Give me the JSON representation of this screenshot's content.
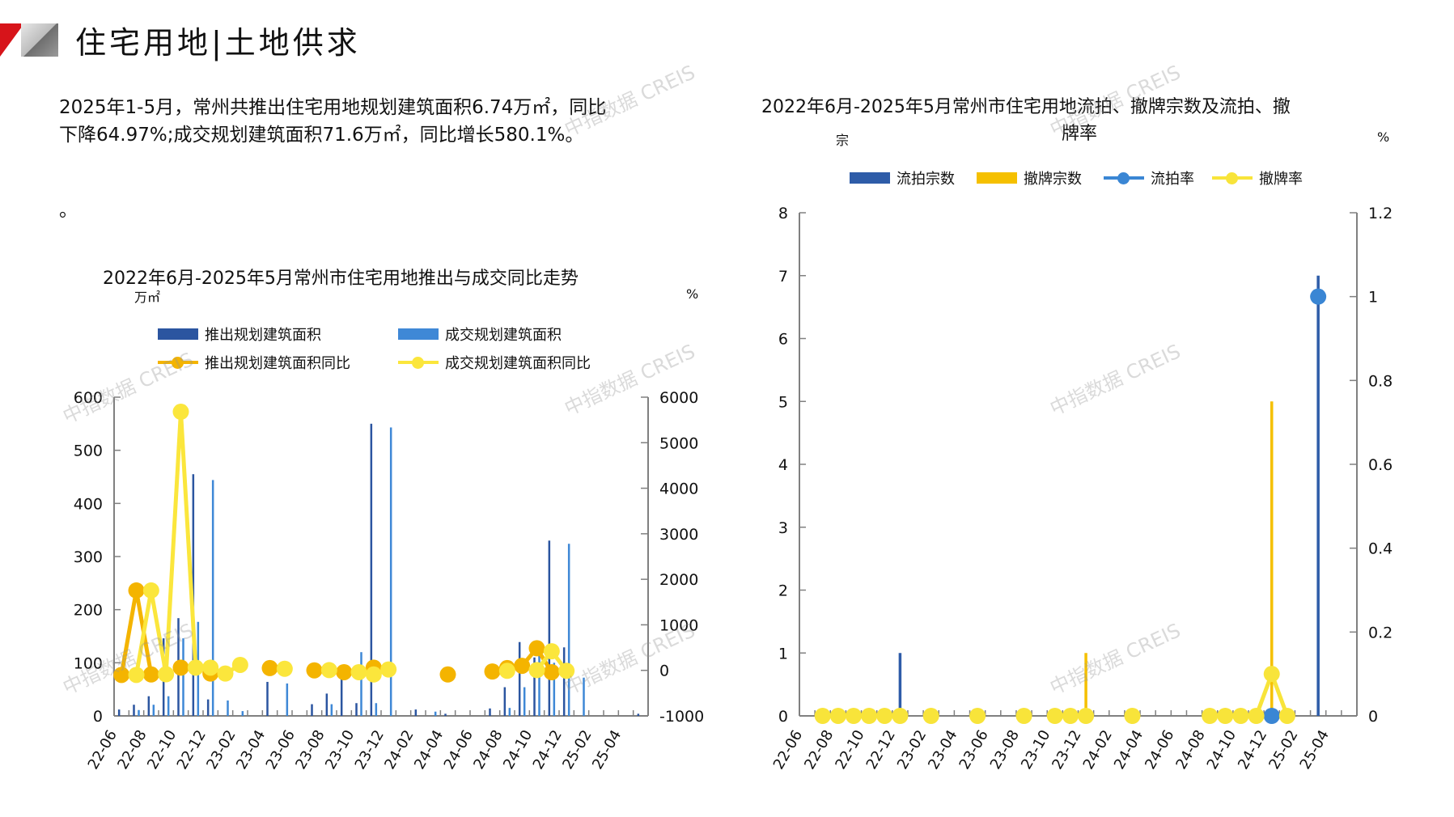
{
  "header": {
    "title": "住宅用地|土地供求"
  },
  "summary": {
    "line1": "2025年1-5月，常州共推出住宅用地规划建筑面积6.74万㎡，同比",
    "line2": "下降64.97%;成交规划建筑面积71.6万㎡，同比增长580.1%。",
    "line3": "。"
  },
  "watermark": "中指数据 CREIS",
  "colors": {
    "push_bar": "#2b55a0",
    "deal_bar": "#3f88d6",
    "push_yoy": "#f4b400",
    "deal_yoy": "#fbe63c",
    "flow_bar": "#2e5ca8",
    "withdraw_bar": "#f5c000",
    "flow_rate": "#3a86d4",
    "withdraw_rate": "#f8e43a",
    "axis": "#808080"
  },
  "chart_data": [
    {
      "type": "bar",
      "title": "2022年6月-2025年5月常州市住宅用地推出与成交同比走势",
      "ylabel": "万㎡",
      "y2label": "%",
      "ylim": [
        0,
        600
      ],
      "y2lim": [
        -1000,
        6000
      ],
      "yticks": [
        "0",
        "100",
        "200",
        "300",
        "400",
        "500",
        "600"
      ],
      "y2ticks": [
        "-1000",
        "0",
        "1000",
        "2000",
        "3000",
        "4000",
        "5000",
        "6000"
      ],
      "categories": [
        "22-06",
        "22-07",
        "22-08",
        "22-09",
        "22-10",
        "22-11",
        "22-12",
        "23-01",
        "23-02",
        "23-03",
        "23-04",
        "23-05",
        "23-06",
        "23-07",
        "23-08",
        "23-09",
        "23-10",
        "23-11",
        "23-12",
        "24-01",
        "24-02",
        "24-03",
        "24-04",
        "24-05",
        "24-06",
        "24-07",
        "24-08",
        "24-09",
        "24-10",
        "24-11",
        "24-12",
        "25-01",
        "25-02",
        "25-03",
        "25-04",
        "25-05"
      ],
      "xtick_labels": [
        "22-06",
        "22-08",
        "22-10",
        "22-12",
        "23-02",
        "23-04",
        "23-06",
        "23-08",
        "23-10",
        "23-12",
        "24-02",
        "24-04",
        "24-06",
        "24-08",
        "24-10",
        "24-12",
        "25-02",
        "25-04"
      ],
      "legend": [
        "推出规划建筑面积",
        "成交规划建筑面积",
        "推出规划建筑面积同比",
        "成交规划建筑面积同比"
      ],
      "series": [
        {
          "name": "推出规划建筑面积",
          "kind": "bar",
          "axis": "left",
          "values": [
            12,
            21,
            37,
            146,
            184,
            455,
            31,
            0,
            0,
            0,
            64,
            0,
            0,
            22,
            42,
            79,
            24,
            550,
            0,
            0,
            12,
            0,
            4,
            0,
            0,
            14,
            54,
            139,
            110,
            330,
            129,
            0,
            0,
            0,
            0,
            4
          ]
        },
        {
          "name": "成交规划建筑面积",
          "kind": "bar",
          "axis": "left",
          "values": [
            0,
            11,
            21,
            37,
            146,
            177,
            444,
            29,
            9,
            0,
            0,
            61,
            0,
            0,
            22,
            0,
            120,
            24,
            543,
            0,
            0,
            8,
            0,
            0,
            0,
            0,
            15,
            54,
            125,
            100,
            324,
            72,
            0,
            0,
            0,
            0
          ]
        },
        {
          "name": "推出规划建筑面积同比",
          "kind": "line",
          "axis": "right",
          "values": [
            -100,
            1755,
            -90,
            null,
            60,
            null,
            -70,
            null,
            null,
            null,
            50,
            null,
            null,
            0,
            null,
            -40,
            null,
            60,
            null,
            null,
            null,
            null,
            -90,
            null,
            null,
            -25,
            50,
            100,
            485,
            -40,
            null,
            null,
            null,
            null,
            null,
            null
          ]
        },
        {
          "name": "成交规划建筑面积同比",
          "kind": "line",
          "axis": "right",
          "values": [
            null,
            -100,
            1755,
            -85,
            5680,
            60,
            60,
            -70,
            120,
            null,
            null,
            35,
            null,
            null,
            5,
            null,
            -40,
            -90,
            20,
            null,
            null,
            null,
            null,
            null,
            null,
            null,
            -10,
            null,
            5,
            420,
            -10,
            null,
            null,
            null,
            null,
            null
          ]
        }
      ]
    },
    {
      "type": "bar",
      "title": "2022年6月-2025年5月常州市住宅用地流拍、撤牌宗数及流拍、撤",
      "title_line2": "牌率",
      "ylabel": "宗",
      "y2label": "%",
      "ylim": [
        0,
        8
      ],
      "y2lim": [
        0,
        1.2
      ],
      "yticks": [
        "0",
        "1",
        "2",
        "3",
        "4",
        "5",
        "6",
        "7",
        "8"
      ],
      "y2ticks": [
        "0",
        "0.2",
        "0.4",
        "0.6",
        "0.8",
        "1",
        "1.2"
      ],
      "categories": [
        "22-06",
        "22-07",
        "22-08",
        "22-09",
        "22-10",
        "22-11",
        "22-12",
        "23-01",
        "23-02",
        "23-03",
        "23-04",
        "23-05",
        "23-06",
        "23-07",
        "23-08",
        "23-09",
        "23-10",
        "23-11",
        "23-12",
        "24-01",
        "24-02",
        "24-03",
        "24-04",
        "24-05",
        "24-06",
        "24-07",
        "24-08",
        "24-09",
        "24-10",
        "24-11",
        "24-12",
        "25-01",
        "25-02",
        "25-03",
        "25-04",
        "25-05"
      ],
      "xtick_labels": [
        "22-06",
        "22-08",
        "22-10",
        "22-12",
        "23-02",
        "23-04",
        "23-06",
        "23-08",
        "23-10",
        "23-12",
        "24-02",
        "24-04",
        "24-06",
        "24-08",
        "24-10",
        "24-12",
        "25-02",
        "25-04"
      ],
      "legend": [
        "流拍宗数",
        "撤牌宗数",
        "流拍率",
        "撤牌率"
      ],
      "series": [
        {
          "name": "流拍宗数",
          "kind": "bar",
          "axis": "left",
          "values": [
            0,
            0,
            0,
            0,
            0,
            0,
            1,
            0,
            0,
            0,
            0,
            0,
            0,
            0,
            0,
            0,
            0,
            0,
            0,
            0,
            0,
            0,
            0,
            0,
            0,
            0,
            0,
            0,
            0,
            0,
            0,
            0,
            0,
            7,
            0,
            0
          ]
        },
        {
          "name": "撤牌宗数",
          "kind": "bar",
          "axis": "left",
          "values": [
            0,
            0,
            0,
            0,
            0,
            0,
            0,
            0,
            0,
            0,
            0,
            0,
            0,
            0,
            0,
            0,
            0,
            0,
            1,
            0,
            0,
            0,
            0,
            0,
            0,
            0,
            0,
            0,
            0,
            0,
            5,
            0,
            0,
            0,
            0,
            0
          ]
        },
        {
          "name": "流拍率",
          "kind": "line",
          "axis": "right",
          "values": [
            null,
            null,
            null,
            null,
            null,
            null,
            null,
            null,
            null,
            null,
            null,
            null,
            null,
            null,
            null,
            null,
            null,
            null,
            null,
            null,
            null,
            null,
            null,
            null,
            null,
            null,
            null,
            null,
            null,
            null,
            0,
            null,
            null,
            1,
            null,
            null
          ]
        },
        {
          "name": "撤牌率",
          "kind": "line",
          "axis": "right",
          "values": [
            null,
            0,
            0,
            0,
            0,
            0,
            0,
            null,
            0,
            null,
            null,
            0,
            null,
            null,
            0,
            null,
            0,
            0,
            0,
            null,
            null,
            0,
            null,
            null,
            null,
            null,
            0,
            0,
            0,
            0,
            0.1,
            0,
            null,
            null,
            null,
            null
          ]
        }
      ]
    }
  ]
}
